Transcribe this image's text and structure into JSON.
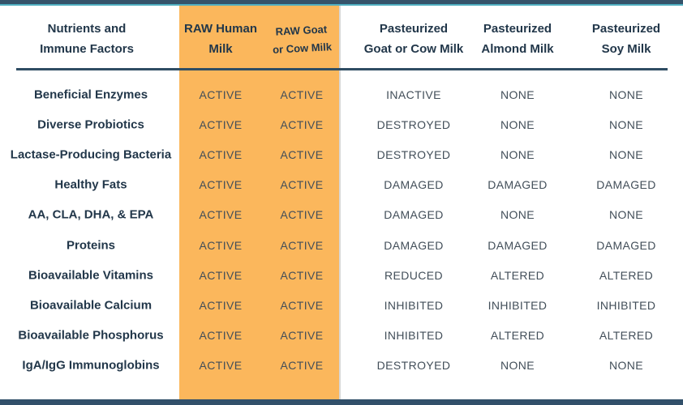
{
  "chart_data": {
    "type": "table",
    "columns": [
      {
        "line1": "Nutrients and",
        "line2": "Immune Factors",
        "highlight": false
      },
      {
        "line1": "RAW Human",
        "line2": "Milk",
        "highlight": true
      },
      {
        "line1": "RAW Goat",
        "line2": "or Cow Milk",
        "highlight": true
      },
      {
        "line1": "Pasteurized",
        "line2": "Goat or Cow Milk",
        "highlight": false
      },
      {
        "line1": "Pasteurized",
        "line2": "Almond Milk",
        "highlight": false
      },
      {
        "line1": "Pasteurized",
        "line2": "Soy Milk",
        "highlight": false
      }
    ],
    "rows": [
      {
        "label": "Beneficial Enzymes",
        "values": [
          "ACTIVE",
          "ACTIVE",
          "INACTIVE",
          "NONE",
          "NONE"
        ]
      },
      {
        "label": "Diverse Probiotics",
        "values": [
          "ACTIVE",
          "ACTIVE",
          "DESTROYED",
          "NONE",
          "NONE"
        ]
      },
      {
        "label": "Lactase-Producing Bacteria",
        "values": [
          "ACTIVE",
          "ACTIVE",
          "DESTROYED",
          "NONE",
          "NONE"
        ]
      },
      {
        "label": "Healthy Fats",
        "values": [
          "ACTIVE",
          "ACTIVE",
          "DAMAGED",
          "DAMAGED",
          "DAMAGED"
        ]
      },
      {
        "label": "AA, CLA, DHA, & EPA",
        "values": [
          "ACTIVE",
          "ACTIVE",
          "DAMAGED",
          "NONE",
          "NONE"
        ]
      },
      {
        "label": "Proteins",
        "values": [
          "ACTIVE",
          "ACTIVE",
          "DAMAGED",
          "DAMAGED",
          "DAMAGED"
        ]
      },
      {
        "label": "Bioavailable Vitamins",
        "values": [
          "ACTIVE",
          "ACTIVE",
          "REDUCED",
          "ALTERED",
          "ALTERED"
        ]
      },
      {
        "label": "Bioavailable Calcium",
        "values": [
          "ACTIVE",
          "ACTIVE",
          "INHIBITED",
          "INHIBITED",
          "INHIBITED"
        ]
      },
      {
        "label": "Bioavailable Phosphorus",
        "values": [
          "ACTIVE",
          "ACTIVE",
          "INHIBITED",
          "ALTERED",
          "ALTERED"
        ]
      },
      {
        "label": "IgA/IgG Immunoglobins",
        "values": [
          "ACTIVE",
          "ACTIVE",
          "DESTROYED",
          "NONE",
          "NONE"
        ]
      }
    ],
    "layout": {
      "grid": "off",
      "legend": "none",
      "highlighted_columns": [
        "RAW Human Milk",
        "RAW Goat or Cow Milk"
      ]
    }
  },
  "colors": {
    "highlight_orange": "#FBB75C",
    "top_bar_navy": "#35536A",
    "top_bar_teal": "#4FAEC0",
    "bottom_bar_navy": "#32506A",
    "separator_navy": "#2F4D63",
    "heading_text": "#22374A",
    "status_text": "#424E59",
    "column_divider_gray": "#D8D8D8"
  }
}
